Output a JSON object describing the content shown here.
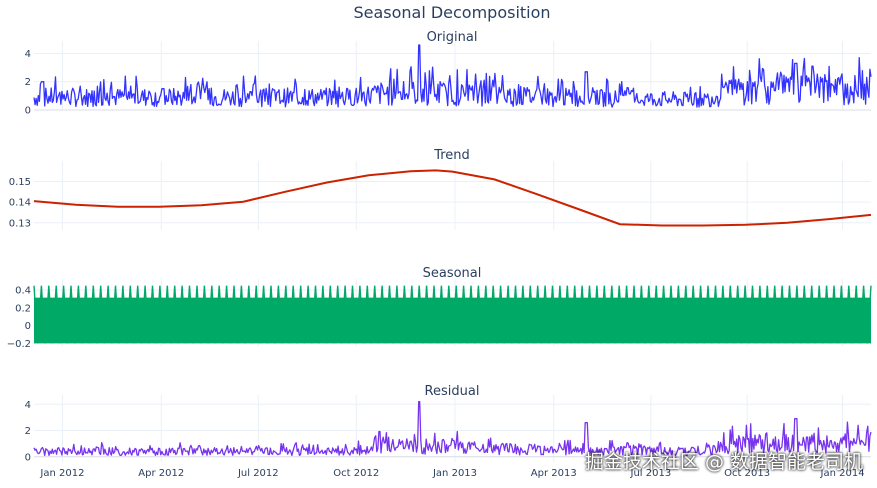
{
  "title": "Seasonal Decomposition",
  "watermark": "掘金技术社区 @ 数据智能老司机",
  "chart_data": [
    {
      "type": "line",
      "title": "Original",
      "color": "#3333ff",
      "yticks": [
        0,
        2,
        4
      ],
      "ylim": [
        0,
        4.6
      ],
      "pattern": {
        "kind": "spiky",
        "seed": 7,
        "base_levels": [
          [
            0.0,
            0.9
          ],
          [
            0.38,
            0.9
          ],
          [
            0.42,
            1.2
          ],
          [
            0.46,
            1.2
          ],
          [
            0.62,
            0.9
          ],
          [
            0.8,
            0.7
          ],
          [
            0.84,
            1.4
          ],
          [
            1.0,
            1.4
          ]
        ],
        "peaks": [
          [
            0.01,
            2.0
          ],
          [
            0.46,
            4.6
          ],
          [
            0.66,
            2.7
          ],
          [
            0.91,
            3.3
          ],
          [
            0.93,
            3.1
          ]
        ]
      }
    },
    {
      "type": "line",
      "title": "Trend",
      "color": "#cc2200",
      "yticks": [
        0.13,
        0.14,
        0.15
      ],
      "ylim": [
        0.1265,
        0.158
      ],
      "x": [
        0.0,
        0.05,
        0.1,
        0.15,
        0.2,
        0.25,
        0.3,
        0.35,
        0.4,
        0.45,
        0.48,
        0.5,
        0.55,
        0.6,
        0.65,
        0.7,
        0.75,
        0.8,
        0.85,
        0.9,
        0.95,
        1.0
      ],
      "values": [
        0.1405,
        0.1387,
        0.1378,
        0.1378,
        0.1385,
        0.1402,
        0.145,
        0.1495,
        0.153,
        0.155,
        0.1554,
        0.1548,
        0.151,
        0.144,
        0.1367,
        0.1293,
        0.1287,
        0.1287,
        0.129,
        0.13,
        0.1318,
        0.1338
      ]
    },
    {
      "type": "line",
      "title": "Seasonal",
      "color": "#00aa66",
      "yticks": [
        -0.2,
        0,
        0.2,
        0.4
      ],
      "ylim": [
        -0.23,
        0.48
      ],
      "pattern": {
        "kind": "band",
        "min": -0.2,
        "max": 0.45,
        "cycles": 113
      }
    },
    {
      "type": "line",
      "title": "Residual",
      "color": "#7733ee",
      "yticks": [
        0,
        2,
        4
      ],
      "ylim": [
        -0.4,
        4.4
      ],
      "pattern": {
        "kind": "spiky",
        "seed": 19,
        "base_levels": [
          [
            0.0,
            0.4
          ],
          [
            0.38,
            0.4
          ],
          [
            0.42,
            0.8
          ],
          [
            0.46,
            0.8
          ],
          [
            0.62,
            0.5
          ],
          [
            0.8,
            0.4
          ],
          [
            0.84,
            1.0
          ],
          [
            1.0,
            1.1
          ]
        ],
        "peaks": [
          [
            0.46,
            4.2
          ],
          [
            0.66,
            2.6
          ],
          [
            0.91,
            2.9
          ]
        ]
      }
    }
  ],
  "x_ticks": [
    "Jan 2012",
    "Apr 2012",
    "Jul 2012",
    "Oct 2012",
    "Jan 2013",
    "Apr 2013",
    "Jul 2013",
    "Oct 2013",
    "Jan 2014"
  ],
  "x_tick_fracs": [
    0.034,
    0.152,
    0.268,
    0.385,
    0.503,
    0.621,
    0.737,
    0.852,
    0.966
  ]
}
